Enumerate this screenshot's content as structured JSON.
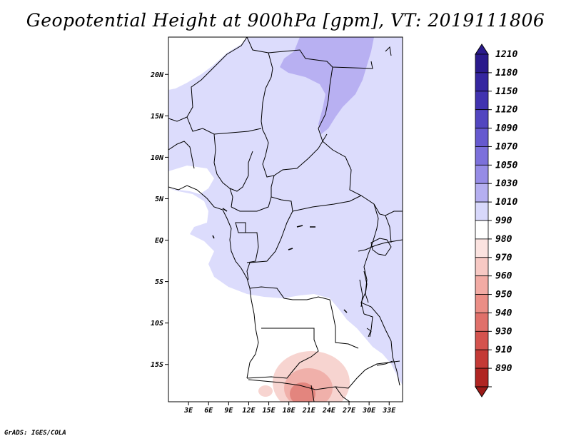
{
  "title": "Geopotential Height at 900hPa [gpm], VT: 2019111806",
  "credit": "GrADS: IGES/COLA",
  "map": {
    "lat_ticks": [
      "20N",
      "15N",
      "10N",
      "5N",
      "EQ",
      "5S",
      "10S",
      "15S"
    ],
    "lon_ticks": [
      "3E",
      "6E",
      "9E",
      "12E",
      "15E",
      "18E",
      "21E",
      "24E",
      "27E",
      "30E",
      "33E"
    ],
    "lon_range": [
      0,
      35
    ],
    "lat_range": [
      -19.5,
      24.5
    ]
  },
  "colorbar": {
    "levels": [
      {
        "label": "1210",
        "color": "#2a1a8c"
      },
      {
        "label": "1180",
        "color": "#3526a0"
      },
      {
        "label": "1150",
        "color": "#4133b0"
      },
      {
        "label": "1120",
        "color": "#5246c0"
      },
      {
        "label": "1090",
        "color": "#6659cf"
      },
      {
        "label": "1070",
        "color": "#7c70db"
      },
      {
        "label": "1050",
        "color": "#968ce6"
      },
      {
        "label": "1030",
        "color": "#b5aff0"
      },
      {
        "label": "1010",
        "color": "#d8d8fb"
      },
      {
        "label": "990",
        "color": "#ffffff"
      },
      {
        "label": "980",
        "color": "#fbe3e0"
      },
      {
        "label": "970",
        "color": "#f7c9c4"
      },
      {
        "label": "960",
        "color": "#f2aba4"
      },
      {
        "label": "950",
        "color": "#eb8e86"
      },
      {
        "label": "940",
        "color": "#e0706a"
      },
      {
        "label": "930",
        "color": "#d4534e"
      },
      {
        "label": "910",
        "color": "#c43a36"
      },
      {
        "label": "890",
        "color": "#b02522"
      }
    ],
    "bottom_color": "#9c1a18"
  },
  "colors": {
    "field_low": "#ffffff",
    "field_main": "#dcdcfc",
    "field_high": "#b8b0f2",
    "red_1": "#f7d4d0",
    "red_2": "#f0b0aa",
    "red_3": "#e3857e",
    "border": "#000000"
  }
}
